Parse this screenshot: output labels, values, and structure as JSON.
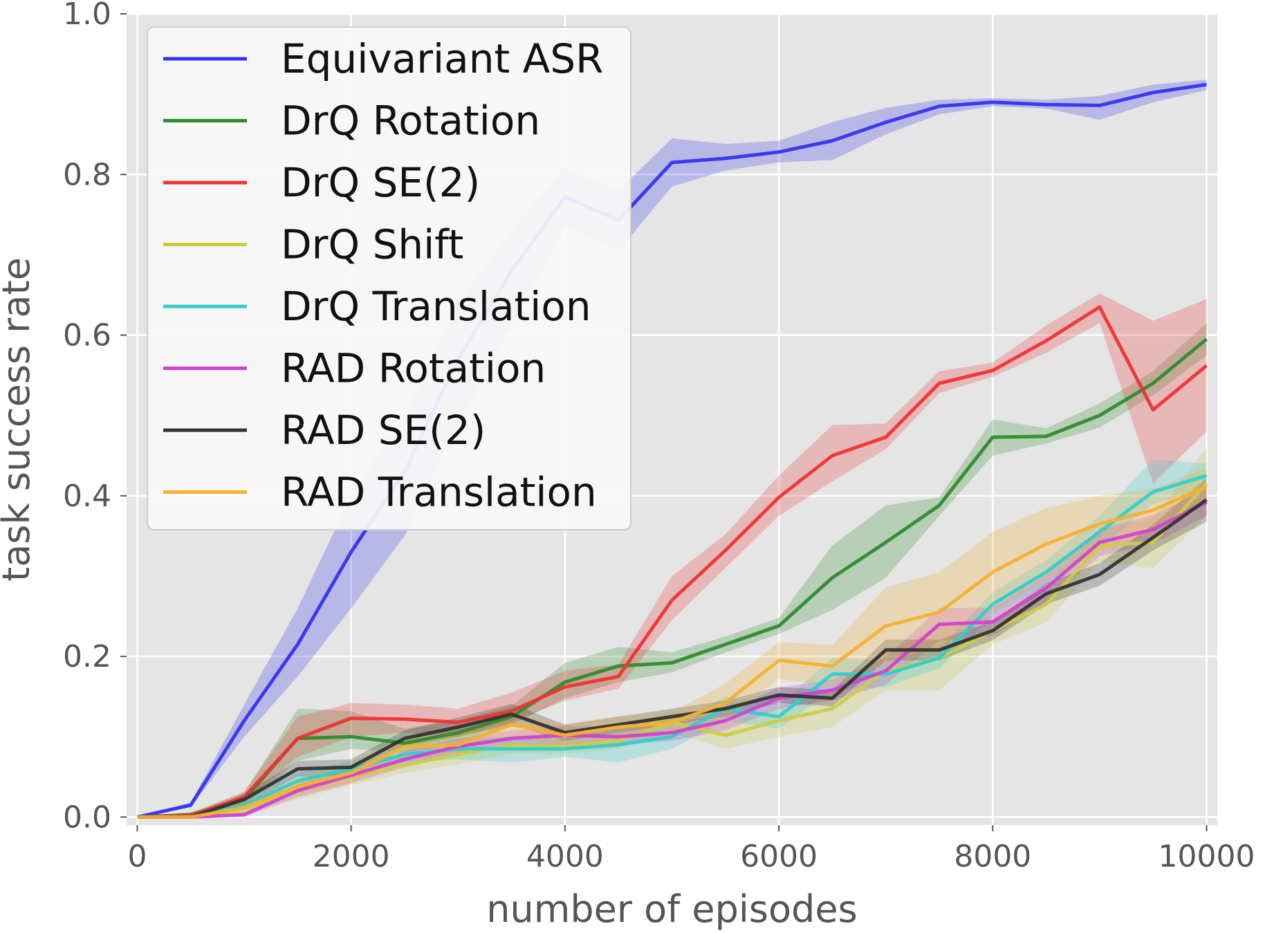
{
  "chart_data": {
    "type": "line",
    "title": "",
    "xlabel": "number of episodes",
    "ylabel": "task success rate",
    "xlim": [
      -100,
      10100
    ],
    "ylim": [
      -0.01,
      1.0
    ],
    "xticks": [
      0,
      2000,
      4000,
      6000,
      8000,
      10000
    ],
    "xtick_labels": [
      "0",
      "2000",
      "4000",
      "6000",
      "8000",
      "10000"
    ],
    "yticks": [
      0.0,
      0.2,
      0.4,
      0.6,
      0.8,
      1.0
    ],
    "ytick_labels": [
      "0.0",
      "0.2",
      "0.4",
      "0.6",
      "0.8",
      "1.0"
    ],
    "grid": true,
    "legend_position": "top-left",
    "x": [
      0,
      500,
      1000,
      1500,
      2000,
      2500,
      3000,
      3500,
      4000,
      4500,
      5000,
      5500,
      6000,
      6500,
      7000,
      7500,
      8000,
      8500,
      9000,
      9500,
      10000
    ],
    "series": [
      {
        "name": "Equivariant ASR",
        "color": "#3333ee",
        "values": [
          0.0,
          0.015,
          0.12,
          0.215,
          0.33,
          0.43,
          0.57,
          0.68,
          0.772,
          0.743,
          0.815,
          0.82,
          0.828,
          0.842,
          0.865,
          0.885,
          0.89,
          0.887,
          0.886,
          0.902,
          0.912
        ],
        "lower": [
          0.0,
          0.012,
          0.1,
          0.175,
          0.26,
          0.35,
          0.49,
          0.61,
          0.735,
          0.705,
          0.785,
          0.805,
          0.815,
          0.818,
          0.85,
          0.875,
          0.885,
          0.882,
          0.868,
          0.89,
          0.905
        ],
        "upper": [
          0.0,
          0.018,
          0.14,
          0.26,
          0.4,
          0.5,
          0.64,
          0.73,
          0.808,
          0.78,
          0.845,
          0.838,
          0.842,
          0.865,
          0.883,
          0.893,
          0.895,
          0.893,
          0.898,
          0.912,
          0.918
        ]
      },
      {
        "name": "DrQ Rotation",
        "color": "#2e8b2e",
        "values": [
          0.0,
          0.003,
          0.022,
          0.098,
          0.1,
          0.092,
          0.105,
          0.125,
          0.168,
          0.188,
          0.192,
          0.215,
          0.238,
          0.298,
          0.342,
          0.388,
          0.473,
          0.474,
          0.5,
          0.54,
          0.595
        ],
        "lower": [
          0.0,
          0.0,
          0.015,
          0.07,
          0.085,
          0.08,
          0.09,
          0.115,
          0.148,
          0.168,
          0.18,
          0.205,
          0.228,
          0.258,
          0.298,
          0.375,
          0.45,
          0.465,
          0.485,
          0.525,
          0.575
        ],
        "upper": [
          0.0,
          0.006,
          0.03,
          0.135,
          0.132,
          0.11,
          0.12,
          0.138,
          0.192,
          0.212,
          0.205,
          0.225,
          0.248,
          0.338,
          0.388,
          0.398,
          0.495,
          0.484,
          0.515,
          0.555,
          0.615
        ]
      },
      {
        "name": "DrQ SE(2)",
        "color": "#ee3333",
        "values": [
          0.0,
          0.002,
          0.025,
          0.098,
          0.123,
          0.122,
          0.118,
          0.132,
          0.162,
          0.175,
          0.27,
          0.332,
          0.398,
          0.45,
          0.473,
          0.54,
          0.556,
          0.593,
          0.635,
          0.507,
          0.562
        ],
        "lower": [
          0.0,
          0.0,
          0.018,
          0.075,
          0.1,
          0.105,
          0.1,
          0.118,
          0.145,
          0.16,
          0.245,
          0.31,
          0.375,
          0.418,
          0.458,
          0.528,
          0.548,
          0.578,
          0.615,
          0.415,
          0.48
        ],
        "upper": [
          0.0,
          0.004,
          0.032,
          0.125,
          0.142,
          0.14,
          0.135,
          0.155,
          0.182,
          0.19,
          0.3,
          0.352,
          0.425,
          0.488,
          0.49,
          0.555,
          0.566,
          0.612,
          0.652,
          0.618,
          0.645
        ]
      },
      {
        "name": "DrQ Shift",
        "color": "#cccc44",
        "values": [
          0.0,
          0.0,
          0.01,
          0.035,
          0.05,
          0.065,
          0.078,
          0.09,
          0.088,
          0.095,
          0.118,
          0.102,
          0.12,
          0.135,
          0.182,
          0.198,
          0.232,
          0.265,
          0.338,
          0.342,
          0.415
        ],
        "lower": [
          0.0,
          0.0,
          0.005,
          0.022,
          0.04,
          0.055,
          0.065,
          0.08,
          0.078,
          0.085,
          0.105,
          0.085,
          0.1,
          0.112,
          0.158,
          0.158,
          0.215,
          0.242,
          0.318,
          0.31,
          0.375
        ],
        "upper": [
          0.0,
          0.0,
          0.015,
          0.048,
          0.06,
          0.075,
          0.09,
          0.1,
          0.098,
          0.105,
          0.132,
          0.118,
          0.138,
          0.158,
          0.205,
          0.238,
          0.25,
          0.288,
          0.358,
          0.372,
          0.46
        ]
      },
      {
        "name": "DrQ Translation",
        "color": "#33cccc",
        "values": [
          0.0,
          0.0,
          0.015,
          0.045,
          0.06,
          0.078,
          0.085,
          0.085,
          0.085,
          0.09,
          0.1,
          0.135,
          0.125,
          0.178,
          0.178,
          0.198,
          0.265,
          0.305,
          0.355,
          0.405,
          0.425
        ],
        "lower": [
          0.0,
          0.0,
          0.008,
          0.035,
          0.05,
          0.068,
          0.072,
          0.068,
          0.075,
          0.068,
          0.085,
          0.12,
          0.11,
          0.158,
          0.162,
          0.185,
          0.25,
          0.29,
          0.335,
          0.39,
          0.41
        ],
        "upper": [
          0.0,
          0.0,
          0.022,
          0.055,
          0.07,
          0.088,
          0.098,
          0.1,
          0.098,
          0.11,
          0.115,
          0.15,
          0.14,
          0.198,
          0.195,
          0.21,
          0.28,
          0.32,
          0.375,
          0.445,
          0.44
        ]
      },
      {
        "name": "RAD Rotation",
        "color": "#cc44cc",
        "values": [
          0.0,
          0.0,
          0.003,
          0.033,
          0.052,
          0.072,
          0.088,
          0.098,
          0.102,
          0.1,
          0.105,
          0.12,
          0.148,
          0.158,
          0.182,
          0.24,
          0.243,
          0.285,
          0.342,
          0.358,
          0.392
        ],
        "lower": [
          0.0,
          0.0,
          0.0,
          0.025,
          0.042,
          0.062,
          0.078,
          0.088,
          0.09,
          0.09,
          0.095,
          0.108,
          0.135,
          0.145,
          0.165,
          0.22,
          0.225,
          0.268,
          0.325,
          0.34,
          0.375
        ],
        "upper": [
          0.0,
          0.0,
          0.006,
          0.041,
          0.062,
          0.082,
          0.098,
          0.108,
          0.114,
          0.11,
          0.115,
          0.132,
          0.161,
          0.171,
          0.199,
          0.26,
          0.261,
          0.302,
          0.359,
          0.376,
          0.409
        ]
      },
      {
        "name": "RAD SE(2)",
        "color": "#333333",
        "values": [
          0.0,
          0.0,
          0.022,
          0.06,
          0.062,
          0.098,
          0.112,
          0.128,
          0.105,
          0.115,
          0.125,
          0.135,
          0.152,
          0.148,
          0.208,
          0.208,
          0.232,
          0.278,
          0.302,
          0.348,
          0.395
        ],
        "lower": [
          0.0,
          0.0,
          0.015,
          0.05,
          0.052,
          0.088,
          0.1,
          0.115,
          0.095,
          0.105,
          0.115,
          0.125,
          0.142,
          0.138,
          0.195,
          0.195,
          0.22,
          0.265,
          0.288,
          0.332,
          0.368
        ],
        "upper": [
          0.0,
          0.0,
          0.029,
          0.07,
          0.072,
          0.108,
          0.124,
          0.141,
          0.115,
          0.125,
          0.135,
          0.145,
          0.162,
          0.158,
          0.221,
          0.221,
          0.244,
          0.291,
          0.316,
          0.364,
          0.422
        ]
      },
      {
        "name": "RAD Translation",
        "color": "#f5b030",
        "values": [
          0.0,
          0.0,
          0.012,
          0.038,
          0.055,
          0.088,
          0.09,
          0.115,
          0.102,
          0.112,
          0.118,
          0.142,
          0.195,
          0.188,
          0.238,
          0.255,
          0.305,
          0.34,
          0.365,
          0.382,
          0.412
        ],
        "lower": [
          0.0,
          0.0,
          0.005,
          0.028,
          0.042,
          0.075,
          0.078,
          0.1,
          0.088,
          0.098,
          0.105,
          0.118,
          0.172,
          0.162,
          0.19,
          0.205,
          0.255,
          0.295,
          0.33,
          0.355,
          0.39
        ],
        "upper": [
          0.0,
          0.0,
          0.019,
          0.048,
          0.068,
          0.101,
          0.102,
          0.13,
          0.116,
          0.126,
          0.131,
          0.166,
          0.218,
          0.214,
          0.286,
          0.305,
          0.355,
          0.385,
          0.4,
          0.409,
          0.434
        ]
      }
    ]
  }
}
